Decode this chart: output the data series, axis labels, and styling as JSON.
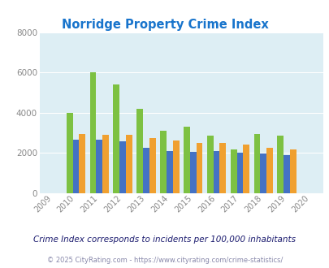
{
  "title": "Norridge Property Crime Index",
  "years": [
    2009,
    2010,
    2011,
    2012,
    2013,
    2014,
    2015,
    2016,
    2017,
    2018,
    2019,
    2020
  ],
  "norridge": [
    null,
    4000,
    6000,
    5400,
    4200,
    3100,
    3300,
    2850,
    2150,
    2950,
    2850,
    null
  ],
  "illinois": [
    null,
    2650,
    2650,
    2550,
    2250,
    2100,
    2050,
    2100,
    2000,
    1950,
    1900,
    null
  ],
  "national": [
    null,
    2950,
    2900,
    2900,
    2750,
    2600,
    2500,
    2500,
    2400,
    2250,
    2150,
    null
  ],
  "norridge_color": "#7dc142",
  "illinois_color": "#4472c4",
  "national_color": "#f0a030",
  "bg_color": "#ddeef4",
  "ylim": [
    0,
    8000
  ],
  "yticks": [
    0,
    2000,
    4000,
    6000,
    8000
  ],
  "subtitle": "Crime Index corresponds to incidents per 100,000 inhabitants",
  "footer": "© 2025 CityRating.com - https://www.cityrating.com/crime-statistics/",
  "title_color": "#1874cc",
  "subtitle_color": "#1a1a6e",
  "footer_color": "#8888aa",
  "legend_norridge_color": "#5a3a6e",
  "legend_illinois_color": "#1a1a6e",
  "legend_national_color": "#5a3a00"
}
